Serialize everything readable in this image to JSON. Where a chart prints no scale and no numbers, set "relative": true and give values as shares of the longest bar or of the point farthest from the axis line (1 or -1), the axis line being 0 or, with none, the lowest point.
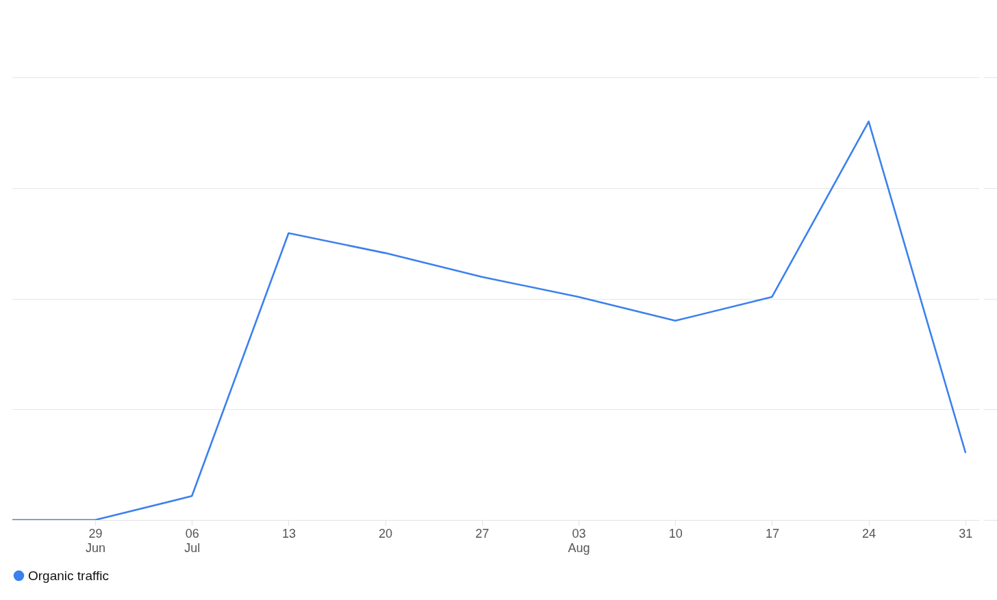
{
  "chart_data": {
    "type": "line",
    "relative": true,
    "x": [
      "--06-23",
      "--06-29",
      "--07-06",
      "--07-13",
      "--07-20",
      "--07-27",
      "--08-03",
      "--08-10",
      "--08-17",
      "--08-24",
      "--08-31"
    ],
    "series": [
      {
        "name": "Organic traffic",
        "color": "#3b80ee",
        "values": [
          0,
          0,
          0.06,
          0.72,
          0.67,
          0.61,
          0.56,
          0.5,
          0.56,
          1,
          0.17
        ]
      }
    ],
    "xlim": [
      "--06-23",
      "--09-01"
    ],
    "xticks": [
      {
        "value": "--06-29",
        "label": "29 Jun"
      },
      {
        "value": "--07-06",
        "label": "06 Jul"
      },
      {
        "value": "--07-13",
        "label": "13"
      },
      {
        "value": "--07-20",
        "label": "20"
      },
      {
        "value": "--07-27",
        "label": "27"
      },
      {
        "value": "--08-03",
        "label": "03 Aug"
      },
      {
        "value": "--08-10",
        "label": "10"
      },
      {
        "value": "--08-17",
        "label": "17"
      },
      {
        "value": "--08-24",
        "label": "24"
      },
      {
        "value": "--08-31",
        "label": "31"
      }
    ],
    "grid": "y",
    "legend": "bottom"
  }
}
